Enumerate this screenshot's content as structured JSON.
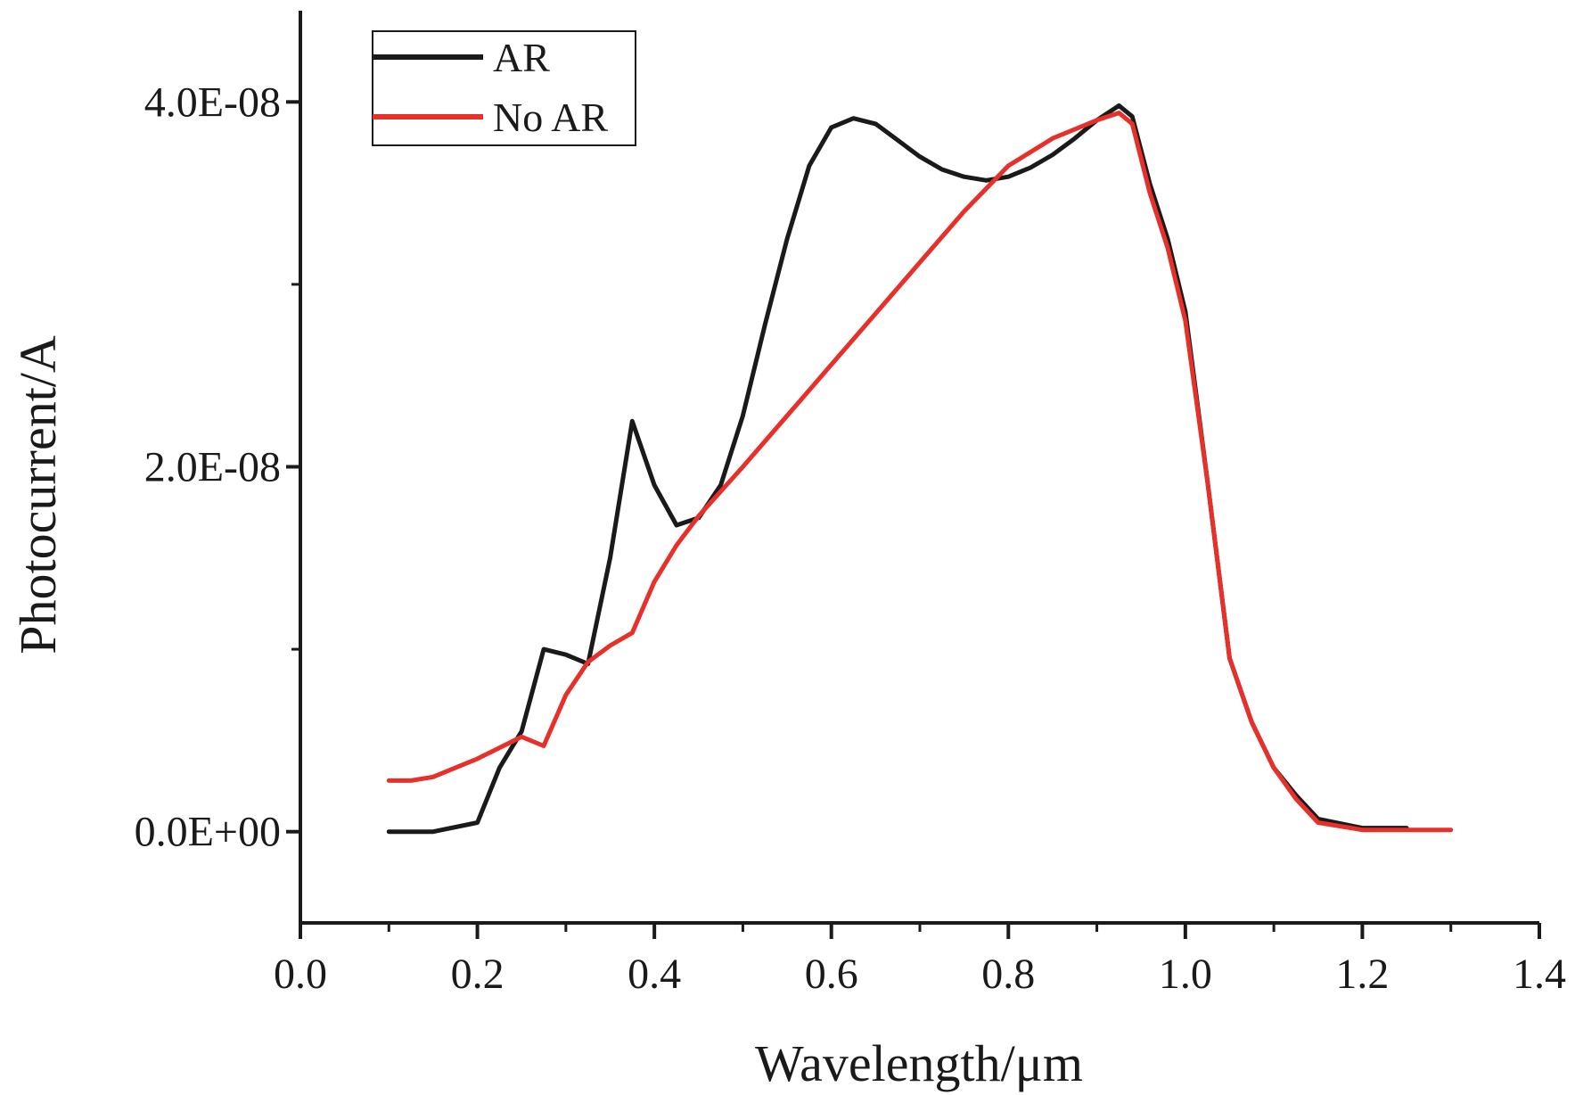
{
  "chart_data": {
    "type": "line",
    "title": "",
    "xlabel": "Wavelength/μm",
    "ylabel": "Photocurrent/A",
    "xlim": [
      0.0,
      1.4
    ],
    "ylim": [
      -5e-09,
      4.5e-08
    ],
    "xticks": [
      0.0,
      0.2,
      0.4,
      0.6,
      0.8,
      1.0,
      1.2,
      1.4
    ],
    "xtick_labels": [
      "0.0",
      "0.2",
      "0.4",
      "0.6",
      "0.8",
      "1.0",
      "1.2",
      "1.4"
    ],
    "yticks": [
      0.0,
      2e-08,
      4e-08
    ],
    "ytick_labels": [
      "0.0E+00",
      "2.0E-08",
      "4.0E-08"
    ],
    "yminor_ticks": [
      1e-08,
      3e-08
    ],
    "grid": false,
    "legend_position": "top-left",
    "series": [
      {
        "name": "AR",
        "color": "#1a1a1a",
        "x": [
          0.1,
          0.15,
          0.2,
          0.225,
          0.25,
          0.275,
          0.3,
          0.325,
          0.35,
          0.375,
          0.4,
          0.425,
          0.45,
          0.475,
          0.5,
          0.525,
          0.55,
          0.575,
          0.6,
          0.625,
          0.65,
          0.675,
          0.7,
          0.725,
          0.75,
          0.775,
          0.8,
          0.825,
          0.85,
          0.875,
          0.9,
          0.925,
          0.94,
          0.96,
          0.98,
          1.0,
          1.025,
          1.05,
          1.075,
          1.1,
          1.125,
          1.15,
          1.2,
          1.25
        ],
        "y": [
          0.0,
          0.0,
          5e-10,
          3.5e-09,
          5.5e-09,
          1e-08,
          9.7e-09,
          9.2e-09,
          1.5e-08,
          2.25e-08,
          1.9e-08,
          1.68e-08,
          1.72e-08,
          1.9e-08,
          2.28e-08,
          2.78e-08,
          3.25e-08,
          3.65e-08,
          3.86e-08,
          3.91e-08,
          3.88e-08,
          3.79e-08,
          3.7e-08,
          3.63e-08,
          3.59e-08,
          3.57e-08,
          3.59e-08,
          3.64e-08,
          3.71e-08,
          3.8e-08,
          3.9e-08,
          3.98e-08,
          3.92e-08,
          3.55e-08,
          3.25e-08,
          2.85e-08,
          1.92e-08,
          9.5e-09,
          6e-09,
          3.5e-09,
          2e-09,
          7e-10,
          2e-10,
          2e-10
        ]
      },
      {
        "name": "No AR",
        "color": "#e8302a",
        "x": [
          0.1,
          0.125,
          0.15,
          0.175,
          0.2,
          0.225,
          0.25,
          0.275,
          0.3,
          0.325,
          0.35,
          0.375,
          0.4,
          0.425,
          0.45,
          0.5,
          0.55,
          0.6,
          0.65,
          0.7,
          0.75,
          0.8,
          0.85,
          0.9,
          0.925,
          0.94,
          0.96,
          0.98,
          1.0,
          1.025,
          1.05,
          1.075,
          1.1,
          1.125,
          1.15,
          1.2,
          1.25,
          1.3
        ],
        "y": [
          2.8e-09,
          2.8e-09,
          3e-09,
          3.5e-09,
          4e-09,
          4.6e-09,
          5.2e-09,
          4.7e-09,
          7.5e-09,
          9.3e-09,
          1.02e-08,
          1.09e-08,
          1.37e-08,
          1.57e-08,
          1.73e-08,
          2e-08,
          2.28e-08,
          2.56e-08,
          2.84e-08,
          3.12e-08,
          3.4e-08,
          3.65e-08,
          3.8e-08,
          3.9e-08,
          3.94e-08,
          3.88e-08,
          3.5e-08,
          3.2e-08,
          2.8e-08,
          1.92e-08,
          9.5e-09,
          6e-09,
          3.5e-09,
          1.8e-09,
          5e-10,
          1e-10,
          1e-10,
          1e-10
        ]
      }
    ]
  }
}
